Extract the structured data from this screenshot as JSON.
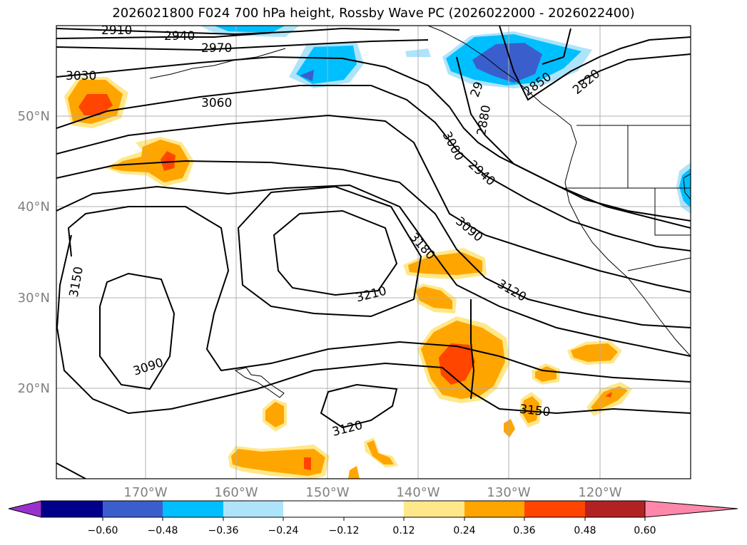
{
  "title": "2026021800 F024 700 hPa height, Rossby Wave PC (2026022000 - 2026022400)",
  "lon_ticks": [
    "170°W",
    "160°W",
    "150°W",
    "140°W",
    "130°W",
    "120°W"
  ],
  "lat_ticks": [
    "20°N",
    "30°N",
    "40°N",
    "50°N"
  ],
  "contour_labels": [
    "2910",
    "2940",
    "2970",
    "3030",
    "3060",
    "3000",
    "2880",
    "2940",
    "2850",
    "2820",
    "3090",
    "3180",
    "3210",
    "3120",
    "3150",
    "3090",
    "3120",
    "3150",
    "29"
  ],
  "colorbar": {
    "tick_labels": [
      "−0.60",
      "−0.48",
      "−0.36",
      "−0.24",
      "−0.12",
      "0.12",
      "0.24",
      "0.36",
      "0.48",
      "0.60"
    ],
    "colors": [
      "#9932cc",
      "#00008b",
      "#3a5fcd",
      "#00bfff",
      "#aee4fa",
      "#ffffff",
      "#ffe88a",
      "#ffa500",
      "#ff4500",
      "#b22222",
      "#ff88aa"
    ]
  }
}
